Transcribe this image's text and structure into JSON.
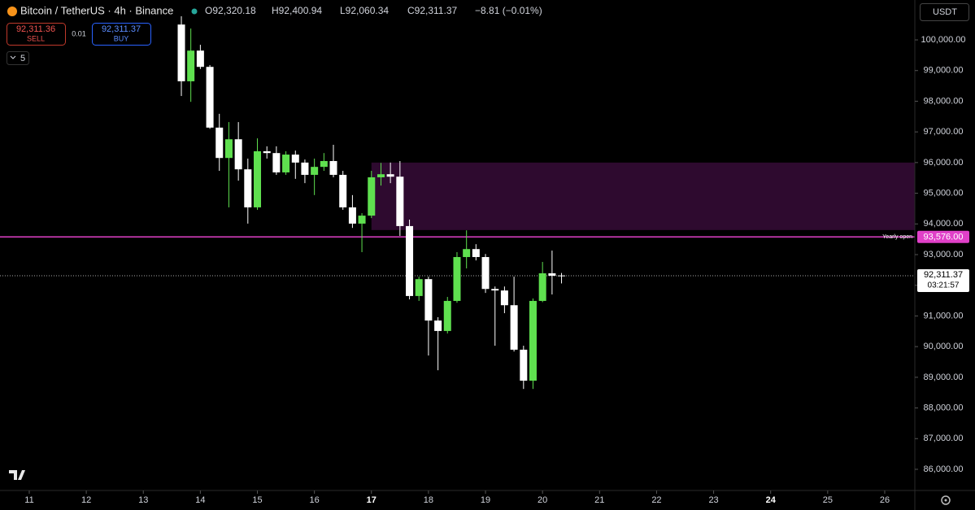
{
  "header": {
    "symbol": "Bitcoin / TetherUS · 4h · Binance",
    "ohlc": [
      "O92,320.18",
      "H92,400.94",
      "L92,060.34",
      "C92,311.37"
    ],
    "change": "−8.81 (−0.01%)"
  },
  "trade": {
    "sell_price": "92,311.36",
    "sell_label": "SELL",
    "quantity": "0.01",
    "buy_price": "92,311.37",
    "buy_label": "BUY"
  },
  "interval_count": "5",
  "currency": "USDT",
  "chart_data": {
    "type": "candlestick",
    "x": [
      13.667,
      13.833,
      14,
      14.167,
      14.333,
      14.5,
      14.667,
      14.833,
      15,
      15.167,
      15.333,
      15.5,
      15.667,
      15.833,
      16,
      16.167,
      16.333,
      16.5,
      16.667,
      16.833,
      17,
      17.167,
      17.333,
      17.5,
      17.667,
      17.833,
      18,
      18.167,
      18.333,
      18.5,
      18.667,
      18.833,
      19,
      19.167,
      19.333,
      19.5,
      19.667,
      19.833,
      20,
      20.167,
      20.333
    ],
    "open": [
      100500,
      98650,
      99650,
      99120,
      97140,
      96150,
      96760,
      95780,
      94540,
      96370,
      96310,
      95680,
      96260,
      96000,
      95600,
      95860,
      96050,
      95600,
      94540,
      94010,
      94270,
      95520,
      95620,
      95540,
      93930,
      91650,
      92200,
      90850,
      90510,
      91490,
      92920,
      93180,
      92920,
      91880,
      91830,
      91350,
      89900,
      88890,
      91490,
      92390,
      92320.18
    ],
    "high": [
      100770,
      100370,
      99840,
      99180,
      97590,
      97320,
      97320,
      96130,
      96790,
      96530,
      96530,
      96370,
      96390,
      96100,
      96130,
      96310,
      96580,
      95730,
      94940,
      94350,
      95730,
      95990,
      96000,
      96050,
      94140,
      92280,
      92280,
      90960,
      91620,
      93080,
      93790,
      93340,
      93020,
      91960,
      91960,
      92280,
      90030,
      91570,
      92760,
      93130,
      92400.94
    ],
    "low": [
      98170,
      97980,
      99050,
      97100,
      95730,
      94540,
      95410,
      94010,
      94460,
      96130,
      95600,
      95600,
      95470,
      95330,
      94940,
      95730,
      95520,
      94460,
      93870,
      93080,
      94190,
      95250,
      95330,
      93610,
      91540,
      91490,
      89710,
      89230,
      90430,
      91430,
      92550,
      92810,
      91750,
      90030,
      91090,
      89840,
      88620,
      88620,
      91450,
      91700,
      92060.34
    ],
    "close": [
      98650,
      99650,
      99120,
      97140,
      96150,
      96760,
      95780,
      94540,
      96370,
      96310,
      95680,
      96260,
      96000,
      95600,
      95860,
      96050,
      95600,
      94540,
      94010,
      94270,
      95520,
      95620,
      95540,
      93930,
      91650,
      92200,
      90850,
      90510,
      91490,
      92920,
      93180,
      92920,
      91880,
      91830,
      91350,
      89900,
      88890,
      91490,
      92390,
      92310,
      92311.37
    ],
    "up_color": "#5fe04f",
    "down_color": "#ffffff",
    "xlim": [
      10.487,
      26.528
    ],
    "xticks": [
      11,
      12,
      13,
      14,
      15,
      16,
      17,
      18,
      19,
      20,
      21,
      22,
      23,
      24,
      25,
      26
    ],
    "xticks_bold": [
      17,
      24
    ],
    "ylim": [
      85310,
      101300
    ],
    "yticks": [
      {
        "value": 86000,
        "label": "86,000.00"
      },
      {
        "value": 87000,
        "label": "87,000.00"
      },
      {
        "value": 88000,
        "label": "88,000.00"
      },
      {
        "value": 89000,
        "label": "89,000.00"
      },
      {
        "value": 90000,
        "label": "90,000.00"
      },
      {
        "value": 91000,
        "label": "91,000.00"
      },
      {
        "value": 92000,
        "label": "92,000.00"
      },
      {
        "value": 93000,
        "label": "93,000.00"
      },
      {
        "value": 94000,
        "label": "94,000.00"
      },
      {
        "value": 95000,
        "label": "95,000.00"
      },
      {
        "value": 96000,
        "label": "96,000.00"
      },
      {
        "value": 97000,
        "label": "97,000.00"
      },
      {
        "value": 98000,
        "label": "98,000.00"
      },
      {
        "value": 99000,
        "label": "99,000.00"
      },
      {
        "value": 100000,
        "label": "100,000.00"
      }
    ],
    "zone": {
      "top": 96000,
      "bottom": 93800,
      "x_start": 17,
      "color": "#2e0a2f"
    },
    "yearly_open": {
      "name": "Yearly open",
      "value": 93576,
      "value_label": "93,576.00",
      "color": "#e040c8"
    },
    "last_price": {
      "value": 92311.37,
      "value_label": "92,311.37",
      "countdown": "03:21:57"
    }
  }
}
